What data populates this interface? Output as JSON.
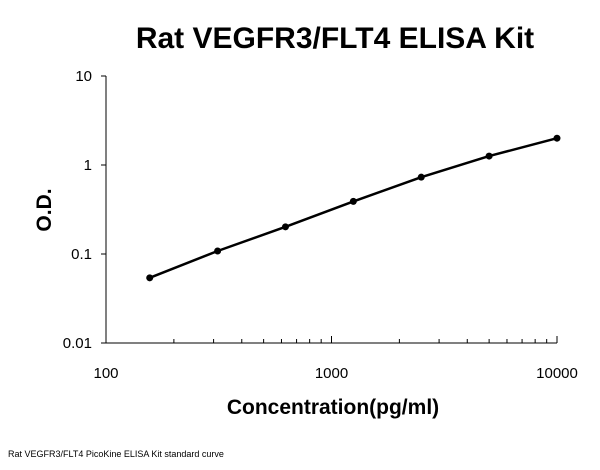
{
  "chart_data": {
    "type": "line",
    "title": "Rat VEGFR3/FLT4 ELISA Kit",
    "xlabel": "Concentration(pg/ml)",
    "ylabel": "O.D.",
    "x_scale": "log",
    "y_scale": "log",
    "xlim": [
      100,
      10000
    ],
    "ylim": [
      0.01,
      10
    ],
    "x_ticks": [
      "100",
      "1000",
      "10000"
    ],
    "y_ticks": [
      "0.01",
      "0.1",
      "1",
      "10"
    ],
    "grid": false,
    "legend": "none",
    "series": [
      {
        "x": [
          156.25,
          312.5,
          625,
          1250,
          2500,
          5000,
          10000
        ],
        "y": [
          0.054,
          0.108,
          0.202,
          0.39,
          0.73,
          1.26,
          2.0
        ]
      }
    ]
  },
  "caption": "Rat VEGFR3/FLT4 PicoKine ELISA Kit standard curve"
}
